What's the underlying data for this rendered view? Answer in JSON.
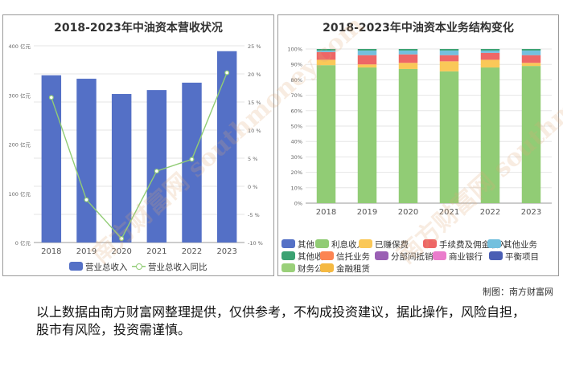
{
  "left_chart_title": "2018-2023年中油资本营收状况",
  "right_chart_title": "2018-2023年中油资本业务结构变化",
  "credit": "制图：南方财富网",
  "disclaimer": "以上数据由南方财富网整理提供，仅供参考，不构成投资建议，据此操作，风险自担，股市有风险，投资需谨慎。",
  "watermark": "南方财富网 southmoney.com",
  "colors": {
    "bar": "#5470c6",
    "line": "#91cc75"
  },
  "chart_data": [
    {
      "type": "bar",
      "title": "2018-2023年中油资本营收状况",
      "categories": [
        "2018",
        "2019",
        "2020",
        "2021",
        "2022",
        "2023"
      ],
      "left_axis_ticks": [
        "0 亿元",
        "100 亿元",
        "200 亿元",
        "300 亿元",
        "400 亿元"
      ],
      "right_axis_ticks": [
        "-10 %",
        "-5 %",
        "0 %",
        "5 %",
        "10 %",
        "15 %",
        "20 %",
        "25 %"
      ],
      "ylim": [
        0,
        400
      ],
      "y2lim": [
        -10,
        25
      ],
      "grid": true,
      "legend_position": "bottom",
      "series": [
        {
          "name": "营业总收入",
          "type": "bar",
          "axis": "left",
          "values": [
            340,
            333,
            302,
            310,
            325,
            389
          ]
        },
        {
          "name": "营业总收入同比",
          "type": "line",
          "axis": "right",
          "values": [
            15.8,
            -2.4,
            -9.3,
            2.7,
            4.8,
            20.2
          ]
        }
      ]
    },
    {
      "type": "bar",
      "stacked": true,
      "title": "2018-2023年中油资本业务结构变化",
      "categories": [
        "2018",
        "2019",
        "2020",
        "2021",
        "2022",
        "2023"
      ],
      "y_ticks": [
        "0%",
        "10%",
        "20%",
        "30%",
        "40%",
        "50%",
        "60%",
        "70%",
        "80%",
        "90%",
        "100%"
      ],
      "ylim": [
        0,
        100
      ],
      "grid": true,
      "legend_position": "bottom",
      "series": [
        {
          "name": "其他",
          "color": "#5470c6",
          "values": [
            0,
            0,
            0,
            0,
            0,
            0
          ]
        },
        {
          "name": "利息收入",
          "color": "#91cc75",
          "values": [
            89.5,
            88,
            87,
            85.5,
            88,
            89
          ]
        },
        {
          "name": "已赚保费",
          "color": "#fac858",
          "values": [
            3.5,
            2,
            4,
            6.5,
            5,
            2
          ]
        },
        {
          "name": "手续费及佣金收入",
          "color": "#ee6666",
          "values": [
            5,
            6,
            5.5,
            4,
            4.5,
            5
          ]
        },
        {
          "name": "其他业务",
          "color": "#73c0de",
          "values": [
            1,
            3,
            2.5,
            3,
            1.5,
            3
          ]
        },
        {
          "name": "其他收入",
          "color": "#3ba272",
          "values": [
            1,
            1,
            1,
            1,
            1,
            1
          ]
        },
        {
          "name": "信托业务",
          "color": "#fc8452",
          "values": [
            0,
            0,
            0,
            0,
            0,
            0
          ]
        },
        {
          "name": "分部间抵销",
          "color": "#9a60b4",
          "values": [
            0,
            0,
            0,
            0,
            0,
            0
          ]
        },
        {
          "name": "商业银行",
          "color": "#ea7ccc",
          "values": [
            0,
            0,
            0,
            0,
            0,
            0
          ]
        },
        {
          "name": "平衡项目",
          "color": "#4a5eb4",
          "values": [
            0,
            0,
            0,
            0,
            0,
            0
          ]
        },
        {
          "name": "财务公司",
          "color": "#9ad07a",
          "values": [
            0,
            0,
            0,
            0,
            0,
            0
          ]
        },
        {
          "name": "金融租赁",
          "color": "#f5b942",
          "values": [
            0,
            0,
            0,
            0,
            0,
            0
          ]
        }
      ]
    }
  ]
}
